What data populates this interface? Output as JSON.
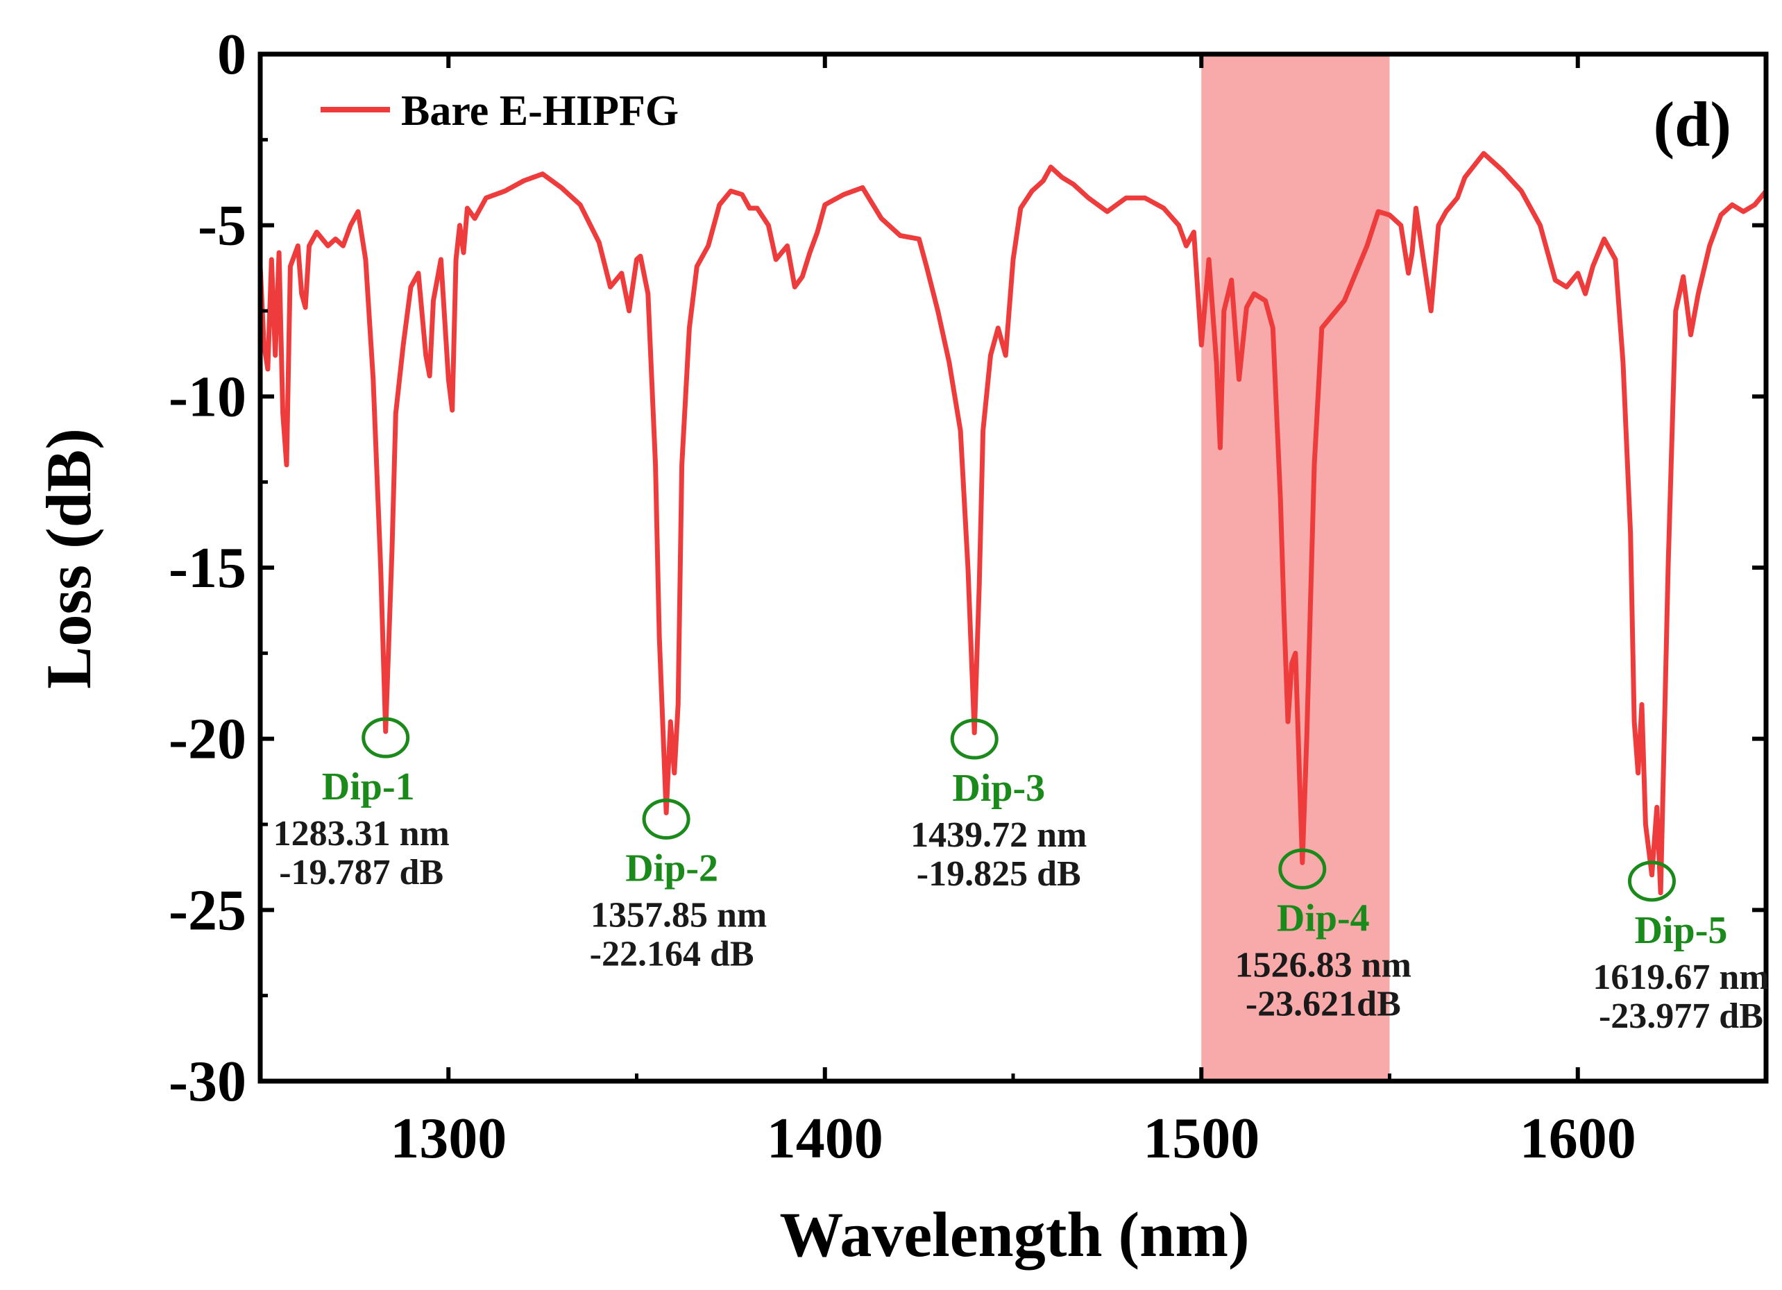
{
  "chart_data": {
    "type": "line",
    "title": "",
    "panel_label": "(d)",
    "xlabel": "Wavelength (nm)",
    "ylabel": "Loss (dB)",
    "xlim": [
      1250,
      1650
    ],
    "ylim": [
      -30,
      0
    ],
    "xticks": [
      1300,
      1400,
      1500,
      1600
    ],
    "yticks": [
      0,
      -5,
      -10,
      -15,
      -20,
      -25,
      -30
    ],
    "grid": false,
    "legend": {
      "position": "top-left",
      "entries": [
        "Bare E-HIPFG"
      ]
    },
    "highlight_band": {
      "x_from": 1500,
      "x_to": 1550,
      "color": "#f8aaaa"
    },
    "series": [
      {
        "name": "Bare E-HIPFG",
        "color": "#ee3b3b",
        "points": [
          [
            1250,
            -6.2
          ],
          [
            1251,
            -8.5
          ],
          [
            1252,
            -9.2
          ],
          [
            1253,
            -6.0
          ],
          [
            1254,
            -8.8
          ],
          [
            1255,
            -5.8
          ],
          [
            1256,
            -10.5
          ],
          [
            1257,
            -12.0
          ],
          [
            1258,
            -6.2
          ],
          [
            1260,
            -5.6
          ],
          [
            1261,
            -7.0
          ],
          [
            1262,
            -7.4
          ],
          [
            1263,
            -5.6
          ],
          [
            1265,
            -5.2
          ],
          [
            1268,
            -5.6
          ],
          [
            1270,
            -5.4
          ],
          [
            1272,
            -5.6
          ],
          [
            1274,
            -5.0
          ],
          [
            1276,
            -4.6
          ],
          [
            1278,
            -6.0
          ],
          [
            1280,
            -9.5
          ],
          [
            1282,
            -15.0
          ],
          [
            1283.31,
            -19.787
          ],
          [
            1285,
            -14.5
          ],
          [
            1286,
            -10.5
          ],
          [
            1288,
            -8.5
          ],
          [
            1290,
            -6.8
          ],
          [
            1292,
            -6.4
          ],
          [
            1294,
            -8.8
          ],
          [
            1295,
            -9.4
          ],
          [
            1296,
            -7.2
          ],
          [
            1298,
            -6.0
          ],
          [
            1300,
            -9.5
          ],
          [
            1301,
            -10.4
          ],
          [
            1302,
            -6.0
          ],
          [
            1303,
            -5.0
          ],
          [
            1304,
            -5.8
          ],
          [
            1305,
            -4.5
          ],
          [
            1307,
            -4.8
          ],
          [
            1310,
            -4.2
          ],
          [
            1315,
            -4.0
          ],
          [
            1320,
            -3.7
          ],
          [
            1325,
            -3.5
          ],
          [
            1330,
            -3.9
          ],
          [
            1335,
            -4.4
          ],
          [
            1340,
            -5.5
          ],
          [
            1343,
            -6.8
          ],
          [
            1346,
            -6.4
          ],
          [
            1348,
            -7.5
          ],
          [
            1350,
            -6.0
          ],
          [
            1351,
            -5.9
          ],
          [
            1353,
            -7.0
          ],
          [
            1355,
            -12.0
          ],
          [
            1356,
            -17.0
          ],
          [
            1357.85,
            -22.164
          ],
          [
            1359,
            -19.5
          ],
          [
            1360,
            -21.0
          ],
          [
            1361,
            -19.0
          ],
          [
            1362,
            -12.0
          ],
          [
            1364,
            -8.0
          ],
          [
            1366,
            -6.2
          ],
          [
            1369,
            -5.6
          ],
          [
            1372,
            -4.4
          ],
          [
            1375,
            -4.0
          ],
          [
            1378,
            -4.1
          ],
          [
            1380,
            -4.5
          ],
          [
            1382,
            -4.5
          ],
          [
            1385,
            -5.0
          ],
          [
            1387,
            -6.0
          ],
          [
            1390,
            -5.6
          ],
          [
            1392,
            -6.8
          ],
          [
            1394,
            -6.5
          ],
          [
            1396,
            -5.8
          ],
          [
            1398,
            -5.2
          ],
          [
            1400,
            -4.4
          ],
          [
            1405,
            -4.1
          ],
          [
            1410,
            -3.9
          ],
          [
            1415,
            -4.8
          ],
          [
            1420,
            -5.3
          ],
          [
            1425,
            -5.4
          ],
          [
            1427,
            -6.2
          ],
          [
            1430,
            -7.5
          ],
          [
            1433,
            -9.0
          ],
          [
            1436,
            -11.0
          ],
          [
            1438,
            -15.0
          ],
          [
            1439.72,
            -19.825
          ],
          [
            1441,
            -15.5
          ],
          [
            1442,
            -11.0
          ],
          [
            1444,
            -8.8
          ],
          [
            1446,
            -8.0
          ],
          [
            1448,
            -8.8
          ],
          [
            1450,
            -6.0
          ],
          [
            1452,
            -4.5
          ],
          [
            1455,
            -4.0
          ],
          [
            1458,
            -3.7
          ],
          [
            1460,
            -3.3
          ],
          [
            1463,
            -3.6
          ],
          [
            1466,
            -3.8
          ],
          [
            1470,
            -4.2
          ],
          [
            1475,
            -4.6
          ],
          [
            1480,
            -4.2
          ],
          [
            1485,
            -4.2
          ],
          [
            1490,
            -4.5
          ],
          [
            1494,
            -5.0
          ],
          [
            1496,
            -5.6
          ],
          [
            1498,
            -5.2
          ],
          [
            1500,
            -8.5
          ],
          [
            1502,
            -6.0
          ],
          [
            1504,
            -9.0
          ],
          [
            1505,
            -11.5
          ],
          [
            1506,
            -7.5
          ],
          [
            1508,
            -6.6
          ],
          [
            1510,
            -9.5
          ],
          [
            1512,
            -7.4
          ],
          [
            1514,
            -7.0
          ],
          [
            1517,
            -7.2
          ],
          [
            1519,
            -8.0
          ],
          [
            1521,
            -13.0
          ],
          [
            1522,
            -16.5
          ],
          [
            1523,
            -19.5
          ],
          [
            1524,
            -17.8
          ],
          [
            1525,
            -17.5
          ],
          [
            1526.83,
            -23.621
          ],
          [
            1528,
            -20.0
          ],
          [
            1530,
            -12.0
          ],
          [
            1532,
            -8.0
          ],
          [
            1535,
            -7.6
          ],
          [
            1538,
            -7.2
          ],
          [
            1541,
            -6.4
          ],
          [
            1544,
            -5.6
          ],
          [
            1547,
            -4.6
          ],
          [
            1550,
            -4.7
          ],
          [
            1553,
            -5.0
          ],
          [
            1555,
            -6.4
          ],
          [
            1556,
            -5.8
          ],
          [
            1557,
            -4.5
          ],
          [
            1559,
            -6.0
          ],
          [
            1561,
            -7.5
          ],
          [
            1563,
            -5.0
          ],
          [
            1565,
            -4.6
          ],
          [
            1568,
            -4.2
          ],
          [
            1570,
            -3.6
          ],
          [
            1575,
            -2.9
          ],
          [
            1580,
            -3.4
          ],
          [
            1585,
            -4.0
          ],
          [
            1590,
            -5.0
          ],
          [
            1594,
            -6.6
          ],
          [
            1597,
            -6.8
          ],
          [
            1600,
            -6.4
          ],
          [
            1602,
            -7.0
          ],
          [
            1604,
            -6.2
          ],
          [
            1607,
            -5.4
          ],
          [
            1610,
            -6.0
          ],
          [
            1612,
            -9.0
          ],
          [
            1614,
            -14.0
          ],
          [
            1615,
            -19.5
          ],
          [
            1616,
            -21.0
          ],
          [
            1617,
            -19.0
          ],
          [
            1618,
            -22.5
          ],
          [
            1619.67,
            -23.977
          ],
          [
            1621,
            -22.0
          ],
          [
            1622,
            -24.5
          ],
          [
            1624,
            -15.0
          ],
          [
            1626,
            -7.5
          ],
          [
            1628,
            -6.5
          ],
          [
            1630,
            -8.2
          ],
          [
            1632,
            -7.0
          ],
          [
            1635,
            -5.6
          ],
          [
            1638,
            -4.7
          ],
          [
            1641,
            -4.4
          ],
          [
            1644,
            -4.6
          ],
          [
            1647,
            -4.4
          ],
          [
            1650,
            -4.0
          ]
        ]
      }
    ],
    "annotations": [
      {
        "name": "Dip-1",
        "x": 1283.31,
        "y": -19.787,
        "wavelength": "1283.31 nm",
        "loss": "-19.787 dB"
      },
      {
        "name": "Dip-2",
        "x": 1357.85,
        "y": -22.164,
        "wavelength": "1357.85 nm",
        "loss": "-22.164 dB"
      },
      {
        "name": "Dip-3",
        "x": 1439.72,
        "y": -19.825,
        "wavelength": "1439.72 nm",
        "loss": "-19.825 dB"
      },
      {
        "name": "Dip-4",
        "x": 1526.83,
        "y": -23.621,
        "wavelength": "1526.83 nm",
        "loss": "-23.621dB"
      },
      {
        "name": "Dip-5",
        "x": 1619.67,
        "y": -23.977,
        "wavelength": "1619.67 nm",
        "loss": "-23.977 dB"
      }
    ]
  }
}
